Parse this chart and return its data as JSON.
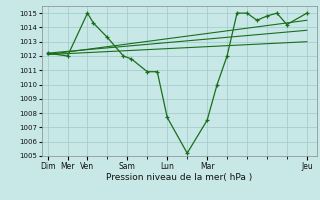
{
  "background_color": "#c8e8e8",
  "grid_color": "#a0c8c8",
  "line_color": "#1a6e1a",
  "marker_color": "#1a6e1a",
  "day_labels": [
    "Dim",
    "Mer",
    "Ven",
    "Sam",
    "Lun",
    "Mar",
    "Jeu"
  ],
  "day_positions": [
    0,
    1,
    2,
    4,
    6,
    8,
    13
  ],
  "ylim": [
    1005,
    1015.5
  ],
  "yticks": [
    1005,
    1006,
    1007,
    1008,
    1009,
    1010,
    1011,
    1012,
    1013,
    1014,
    1015
  ],
  "xlabel": "Pression niveau de la mer( hPa )",
  "series1": {
    "x": [
      0,
      1,
      2,
      2.3,
      3,
      3.8,
      4.2,
      5,
      5.5,
      6,
      7,
      8,
      8.5,
      9,
      9.5,
      10,
      10.5,
      11,
      11.5,
      12,
      13
    ],
    "y": [
      1012.2,
      1012.0,
      1015.0,
      1014.3,
      1013.3,
      1012.0,
      1011.8,
      1010.9,
      1010.9,
      1007.7,
      1005.2,
      1007.5,
      1010.0,
      1012.0,
      1015.0,
      1015.0,
      1014.5,
      1014.8,
      1015.0,
      1014.2,
      1015.0
    ]
  },
  "trend1": {
    "x": [
      0,
      13
    ],
    "y": [
      1012.2,
      1013.8
    ]
  },
  "trend2": {
    "x": [
      0,
      13
    ],
    "y": [
      1012.1,
      1014.5
    ]
  },
  "trend3": {
    "x": [
      0,
      13
    ],
    "y": [
      1012.1,
      1013.0
    ]
  }
}
